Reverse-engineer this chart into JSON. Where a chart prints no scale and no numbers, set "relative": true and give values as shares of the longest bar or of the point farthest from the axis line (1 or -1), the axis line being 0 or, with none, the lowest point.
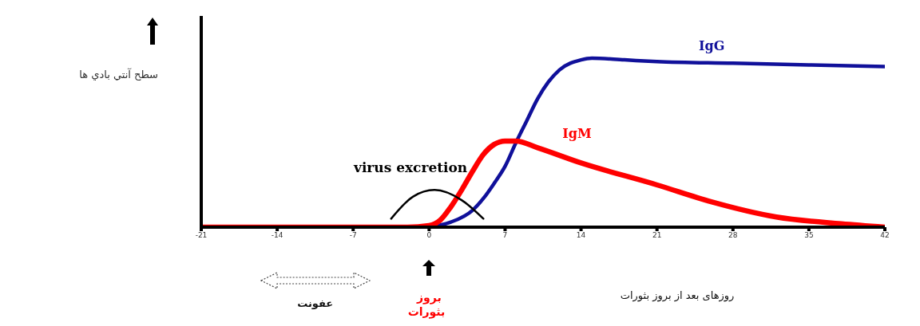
{
  "chart_data": {
    "type": "line",
    "relative": true,
    "ylabel": "سطح آنتي بادي ها",
    "xlabel": "روزهای بعد از بروز بثورات",
    "xlim": [
      -21,
      42
    ],
    "xticks": [
      -21,
      -14,
      -7,
      0,
      7,
      14,
      21,
      28,
      35,
      42
    ],
    "series": [
      {
        "name": "IgG",
        "color": "#10109a",
        "x": [
          0,
          2,
          4,
          5,
          6,
          7,
          8,
          9,
          10,
          11,
          12,
          14,
          15,
          18,
          21,
          28,
          35,
          42
        ],
        "values": [
          0,
          0.03,
          0.1,
          0.17,
          0.26,
          0.36,
          0.5,
          0.63,
          0.76,
          0.86,
          0.93,
          0.99,
          1,
          0.99,
          0.98,
          0.97,
          0.96,
          0.95
        ]
      },
      {
        "name": "IgM",
        "color": "#ff0000",
        "x": [
          -21,
          -2,
          0,
          1,
          2,
          3,
          4,
          5,
          6,
          7,
          8,
          10,
          14,
          21,
          26,
          32,
          38,
          42
        ],
        "values": [
          0,
          0,
          0.01,
          0.04,
          0.12,
          0.22,
          0.33,
          0.43,
          0.49,
          0.51,
          0.51,
          0.47,
          0.38,
          0.25,
          0.15,
          0.06,
          0.02,
          0
        ]
      },
      {
        "name": "virus excretion",
        "color": "#000000",
        "x": [
          -3.5,
          -1.5,
          0.5,
          3,
          5
        ],
        "values": [
          0.05,
          0.18,
          0.22,
          0.16,
          0.05
        ]
      }
    ],
    "annotations": [
      "بروز بثورات",
      "عفونت"
    ]
  }
}
